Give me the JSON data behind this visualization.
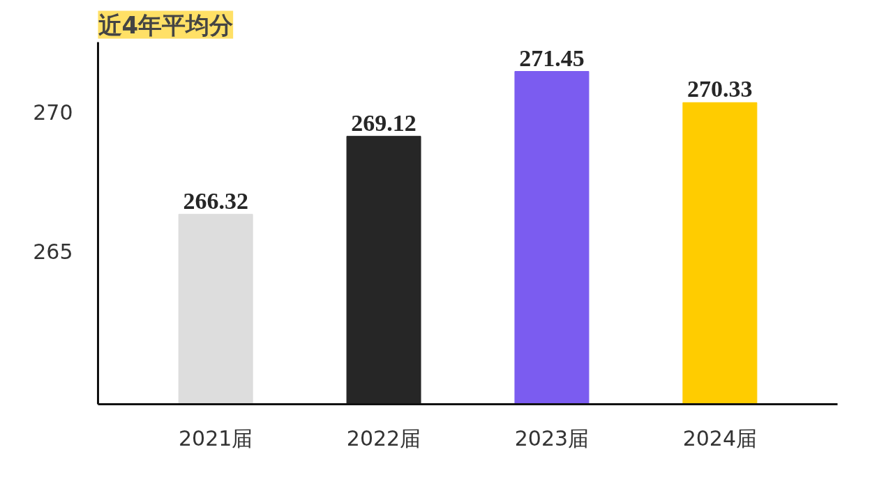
{
  "chart_data": {
    "type": "bar",
    "title": "近4年平均分",
    "categories": [
      "2021届",
      "2022届",
      "2023届",
      "2024届"
    ],
    "values": [
      266.32,
      269.12,
      271.45,
      270.33
    ],
    "colors": [
      "#dddddd",
      "#262626",
      "#7b5cf0",
      "#ffcc00"
    ],
    "ylim": [
      259.5,
      272.5
    ],
    "yticks": [
      265,
      270
    ],
    "grid": false,
    "data_labels": true
  }
}
